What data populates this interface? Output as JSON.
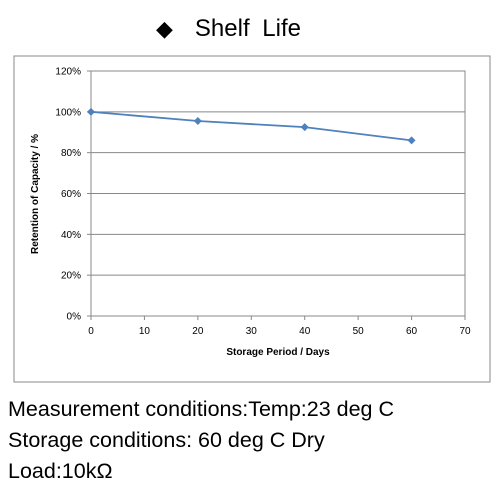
{
  "heading": {
    "bullet": "◆",
    "title": "Shelf Life"
  },
  "chart_data": {
    "type": "line",
    "title": "Shelf Life",
    "xlabel": "Storage Period / Days",
    "ylabel": "Retention of Capacity / %",
    "xlim": [
      0,
      70
    ],
    "ylim": [
      0,
      120
    ],
    "x_ticks": [
      0,
      10,
      20,
      30,
      40,
      50,
      60,
      70
    ],
    "y_ticks": [
      0,
      20,
      40,
      60,
      80,
      100,
      120
    ],
    "y_tick_suffix": "%",
    "grid": true,
    "legend": "none",
    "series": [
      {
        "x": [
          0,
          20,
          40,
          60
        ],
        "values": [
          100,
          95.5,
          92.5,
          86
        ],
        "color": "#4f81bd"
      }
    ]
  },
  "notes": [
    "Measurement conditions:Temp:23 deg C",
    "Storage conditions: 60 deg C Dry",
    "Load:10kΩ"
  ],
  "colors": {
    "series": "#4f81bd",
    "grid": "#888888",
    "frame": "#888888"
  }
}
